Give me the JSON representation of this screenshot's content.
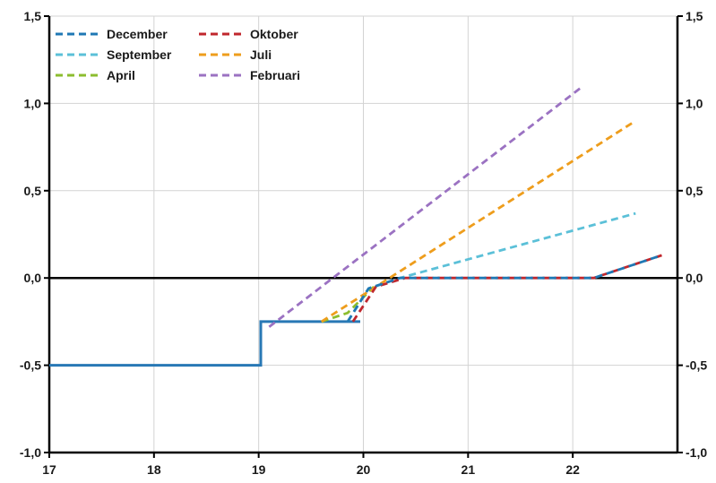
{
  "chart_data": {
    "type": "line",
    "xlim": [
      17,
      23
    ],
    "ylim": [
      -1.0,
      1.5
    ],
    "x_ticks": [
      17,
      18,
      19,
      20,
      21,
      22
    ],
    "x_tick_labels": [
      "17",
      "18",
      "19",
      "20",
      "21",
      "22"
    ],
    "y_ticks": [
      -1.0,
      -0.5,
      0.0,
      0.5,
      1.0,
      1.5
    ],
    "y_tick_labels": [
      "-1,0",
      "-0,5",
      "0,0",
      "0,5",
      "1,0",
      "1,5"
    ],
    "y_axis_both_sides": true,
    "grid": true,
    "zero_line": true,
    "legend_placement": "top-left",
    "policy_rate": {
      "color": "#2878b5",
      "style": "solid",
      "points": [
        [
          17.0,
          -0.5
        ],
        [
          19.02,
          -0.5
        ],
        [
          19.02,
          -0.25
        ],
        [
          19.97,
          -0.25
        ]
      ]
    },
    "series": [
      {
        "name": "December",
        "color": "#1f78b4",
        "style": "dashed",
        "points": [
          [
            19.85,
            -0.25
          ],
          [
            20.05,
            -0.06
          ],
          [
            20.35,
            0.0
          ],
          [
            22.2,
            0.0
          ],
          [
            22.85,
            0.13
          ]
        ]
      },
      {
        "name": "Oktober",
        "color": "#c0272d",
        "style": "dashed",
        "points": [
          [
            19.9,
            -0.25
          ],
          [
            20.12,
            -0.05
          ],
          [
            20.4,
            0.0
          ],
          [
            22.2,
            0.0
          ],
          [
            22.85,
            0.13
          ]
        ]
      },
      {
        "name": "September",
        "color": "#5bc0d8",
        "style": "dashed",
        "points": [
          [
            19.85,
            -0.25
          ],
          [
            20.05,
            -0.06
          ],
          [
            20.35,
            0.0
          ],
          [
            22.6,
            0.37
          ]
        ]
      },
      {
        "name": "Juli",
        "color": "#ee9d1c",
        "style": "dashed",
        "points": [
          [
            19.6,
            -0.25
          ],
          [
            20.25,
            0.0
          ],
          [
            22.6,
            0.9
          ]
        ]
      },
      {
        "name": "April",
        "color": "#8cbd2f",
        "style": "dashed",
        "points": [
          [
            19.6,
            -0.25
          ],
          [
            19.85,
            -0.2
          ],
          [
            20.1,
            -0.05
          ]
        ]
      },
      {
        "name": "Februari",
        "color": "#9b72c2",
        "style": "dashed",
        "points": [
          [
            19.1,
            -0.28
          ],
          [
            22.1,
            1.1
          ]
        ]
      }
    ],
    "legend_order": [
      "December",
      "Oktober",
      "September",
      "Juli",
      "April",
      "Februari"
    ]
  }
}
